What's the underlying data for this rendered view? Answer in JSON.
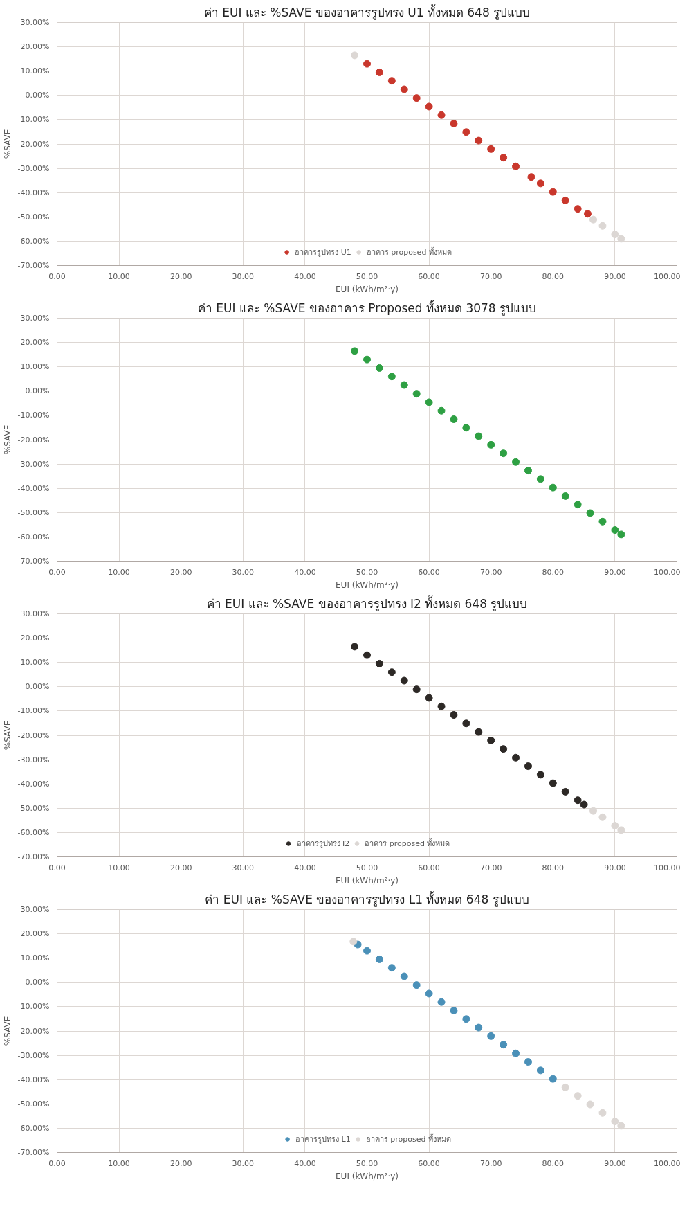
{
  "chart_data": [
    {
      "type": "scatter",
      "title": "ค่า EUI และ %SAVE ของอาคารรูปทรง U1 ทั้งหมด 648 รูปแบบ",
      "xlabel": "EUI (kWh/m²·y)",
      "ylabel": "%SAVE",
      "xlim": [
        0,
        100
      ],
      "ylim": [
        -70,
        30
      ],
      "xticks": [
        {
          "value": 0,
          "label": "0.00"
        },
        {
          "value": 10,
          "label": "10.00"
        },
        {
          "value": 20,
          "label": "20.00"
        },
        {
          "value": 30,
          "label": "30.00"
        },
        {
          "value": 40,
          "label": "40.00"
        },
        {
          "value": 50,
          "label": "50.00"
        },
        {
          "value": 60,
          "label": "60.00"
        },
        {
          "value": 70,
          "label": "70.00"
        },
        {
          "value": 80,
          "label": "80.00"
        },
        {
          "value": 90,
          "label": "90.00"
        },
        {
          "value": 100,
          "label": "100.00"
        }
      ],
      "yticks": [
        {
          "value": -70,
          "label": "-70.00%"
        },
        {
          "value": -60,
          "label": "-60.00%"
        },
        {
          "value": -50,
          "label": "-50.00%"
        },
        {
          "value": -40,
          "label": "-40.00%"
        },
        {
          "value": -30,
          "label": "-30.00%"
        },
        {
          "value": -20,
          "label": "-20.00%"
        },
        {
          "value": -10,
          "label": "-10.00%"
        },
        {
          "value": 0,
          "label": "0.00%"
        },
        {
          "value": 10,
          "label": "10.00%"
        },
        {
          "value": 20,
          "label": "20.00%"
        },
        {
          "value": 30,
          "label": "30.00%"
        }
      ],
      "grid": true,
      "legend": "bottom",
      "marker": "circle",
      "series": [
        {
          "name": "อาคารรูปทรง U1",
          "color": "#c9372c",
          "x": [
            50,
            52,
            54,
            56,
            58,
            60,
            62,
            64,
            66,
            68,
            70,
            72,
            74,
            76.5,
            78,
            80,
            82,
            84,
            85.6
          ],
          "values": [
            13.0,
            9.5,
            6.0,
            2.5,
            -1.1,
            -4.6,
            -8.1,
            -11.6,
            -15.1,
            -18.6,
            -22.1,
            -25.6,
            -29.2,
            -33.6,
            -36.2,
            -39.7,
            -43.2,
            -46.7,
            -48.7
          ]
        },
        {
          "name": "อาคาร proposed ทั้งหมด",
          "color": "#dcd7d4",
          "x": [
            48,
            86.5,
            88,
            90,
            91
          ],
          "values": [
            16.5,
            -51.1,
            -53.7,
            -57.2,
            -59.0
          ]
        }
      ]
    },
    {
      "type": "scatter",
      "title": "ค่า EUI และ %SAVE ของอาคาร Proposed ทั้งหมด 3078 รูปแบบ",
      "xlabel": "EUI (kWh/m²·y)",
      "ylabel": "%SAVE",
      "xlim": [
        0,
        100
      ],
      "ylim": [
        -70,
        30
      ],
      "xticks": [
        {
          "value": 0,
          "label": "0.00"
        },
        {
          "value": 10,
          "label": "10.00"
        },
        {
          "value": 20,
          "label": "20.00"
        },
        {
          "value": 30,
          "label": "30.00"
        },
        {
          "value": 40,
          "label": "40.00"
        },
        {
          "value": 50,
          "label": "50.00"
        },
        {
          "value": 60,
          "label": "60.00"
        },
        {
          "value": 70,
          "label": "70.00"
        },
        {
          "value": 80,
          "label": "80.00"
        },
        {
          "value": 90,
          "label": "90.00"
        },
        {
          "value": 100,
          "label": "100.00"
        }
      ],
      "yticks": [
        {
          "value": -70,
          "label": "-70.00%"
        },
        {
          "value": -60,
          "label": "-60.00%"
        },
        {
          "value": -50,
          "label": "-50.00%"
        },
        {
          "value": -40,
          "label": "-40.00%"
        },
        {
          "value": -30,
          "label": "-30.00%"
        },
        {
          "value": -20,
          "label": "-20.00%"
        },
        {
          "value": -10,
          "label": "-10.00%"
        },
        {
          "value": 0,
          "label": "0.00%"
        },
        {
          "value": 10,
          "label": "10.00%"
        },
        {
          "value": 20,
          "label": "20.00%"
        },
        {
          "value": 30,
          "label": "30.00%"
        }
      ],
      "grid": true,
      "marker": "circle",
      "series": [
        {
          "color": "#2ea043",
          "x": [
            48,
            50,
            52,
            54,
            56,
            58,
            60,
            62,
            64,
            66,
            68,
            70,
            72,
            74,
            76,
            78,
            80,
            82,
            84,
            86,
            88,
            90,
            91
          ],
          "values": [
            16.5,
            13.0,
            9.5,
            6.0,
            2.5,
            -1.1,
            -4.6,
            -8.1,
            -11.6,
            -15.1,
            -18.6,
            -22.1,
            -25.6,
            -29.2,
            -32.7,
            -36.2,
            -39.7,
            -43.2,
            -46.7,
            -50.2,
            -53.7,
            -57.2,
            -59.0
          ]
        }
      ]
    },
    {
      "type": "scatter",
      "title": "ค่า EUI และ %SAVE ของอาคารรูปทรง I2 ทั้งหมด 648 รูปแบบ",
      "xlabel": "EUI (kWh/m²·y)",
      "ylabel": "%SAVE",
      "xlim": [
        0,
        100
      ],
      "ylim": [
        -70,
        30
      ],
      "xticks": [
        {
          "value": 0,
          "label": "0.00"
        },
        {
          "value": 10,
          "label": "10.00"
        },
        {
          "value": 20,
          "label": "20.00"
        },
        {
          "value": 30,
          "label": "30.00"
        },
        {
          "value": 40,
          "label": "40.00"
        },
        {
          "value": 50,
          "label": "50.00"
        },
        {
          "value": 60,
          "label": "60.00"
        },
        {
          "value": 70,
          "label": "70.00"
        },
        {
          "value": 80,
          "label": "80.00"
        },
        {
          "value": 90,
          "label": "90.00"
        },
        {
          "value": 100,
          "label": "100.00"
        }
      ],
      "yticks": [
        {
          "value": -70,
          "label": "-70.00%"
        },
        {
          "value": -60,
          "label": "-60.00%"
        },
        {
          "value": -50,
          "label": "-50.00%"
        },
        {
          "value": -40,
          "label": "-40.00%"
        },
        {
          "value": -30,
          "label": "-30.00%"
        },
        {
          "value": -20,
          "label": "-20.00%"
        },
        {
          "value": -10,
          "label": "-10.00%"
        },
        {
          "value": 0,
          "label": "0.00%"
        },
        {
          "value": 10,
          "label": "10.00%"
        },
        {
          "value": 20,
          "label": "20.00%"
        },
        {
          "value": 30,
          "label": "30.00%"
        }
      ],
      "grid": true,
      "legend": "bottom",
      "marker": "circle",
      "series": [
        {
          "name": "อาคารรูปทรง I2",
          "color": "#2d2926",
          "x": [
            48,
            50,
            52,
            54,
            56,
            58,
            60,
            62,
            64,
            66,
            68,
            70,
            72,
            74,
            76,
            78,
            80,
            82,
            84,
            85
          ],
          "values": [
            16.5,
            13.0,
            9.5,
            6.0,
            2.5,
            -1.1,
            -4.6,
            -8.1,
            -11.6,
            -15.1,
            -18.6,
            -22.1,
            -25.6,
            -29.2,
            -32.7,
            -36.2,
            -39.7,
            -43.2,
            -46.7,
            -48.5
          ]
        },
        {
          "name": "อาคาร proposed ทั้งหมด",
          "color": "#dcd7d4",
          "x": [
            86.5,
            88,
            90,
            91
          ],
          "values": [
            -51.1,
            -53.7,
            -57.2,
            -59.0
          ]
        }
      ]
    },
    {
      "type": "scatter",
      "title": "ค่า EUI และ %SAVE ของอาคารรูปทรง L1 ทั้งหมด 648 รูปแบบ",
      "xlabel": "EUI (kWh/m²·y)",
      "ylabel": "%SAVE",
      "xlim": [
        0,
        100
      ],
      "ylim": [
        -70,
        30
      ],
      "xticks": [
        {
          "value": 0,
          "label": "0.00"
        },
        {
          "value": 10,
          "label": "10.00"
        },
        {
          "value": 20,
          "label": "20.00"
        },
        {
          "value": 30,
          "label": "30.00"
        },
        {
          "value": 40,
          "label": "40.00"
        },
        {
          "value": 50,
          "label": "50.00"
        },
        {
          "value": 60,
          "label": "60.00"
        },
        {
          "value": 70,
          "label": "70.00"
        },
        {
          "value": 80,
          "label": "80.00"
        },
        {
          "value": 90,
          "label": "90.00"
        },
        {
          "value": 100,
          "label": "100.00"
        }
      ],
      "yticks": [
        {
          "value": -70,
          "label": "-70.00%"
        },
        {
          "value": -60,
          "label": "-60.00%"
        },
        {
          "value": -50,
          "label": "-50.00%"
        },
        {
          "value": -40,
          "label": "-40.00%"
        },
        {
          "value": -30,
          "label": "-30.00%"
        },
        {
          "value": -20,
          "label": "-20.00%"
        },
        {
          "value": -10,
          "label": "-10.00%"
        },
        {
          "value": 0,
          "label": "0.00%"
        },
        {
          "value": 10,
          "label": "10.00%"
        },
        {
          "value": 20,
          "label": "20.00%"
        },
        {
          "value": 30,
          "label": "30.00%"
        }
      ],
      "grid": true,
      "legend": "bottom",
      "marker": "circle",
      "series": [
        {
          "name": "อาคารรูปทรง L1",
          "color": "#4a90b8",
          "x": [
            48.5,
            50,
            52,
            54,
            56,
            58,
            60,
            62,
            64,
            66,
            68,
            70,
            72,
            74,
            76,
            78,
            80
          ],
          "values": [
            15.6,
            13.0,
            9.5,
            6.0,
            2.5,
            -1.1,
            -4.6,
            -8.1,
            -11.6,
            -15.1,
            -18.6,
            -22.1,
            -25.6,
            -29.2,
            -32.7,
            -36.2,
            -39.7
          ]
        },
        {
          "name": "อาคาร proposed ทั้งหมด",
          "color": "#dcd7d4",
          "x": [
            47.8,
            82,
            84,
            86,
            88,
            90,
            91
          ],
          "values": [
            16.8,
            -43.2,
            -46.7,
            -50.2,
            -53.7,
            -57.2,
            -59.0
          ]
        }
      ]
    }
  ]
}
